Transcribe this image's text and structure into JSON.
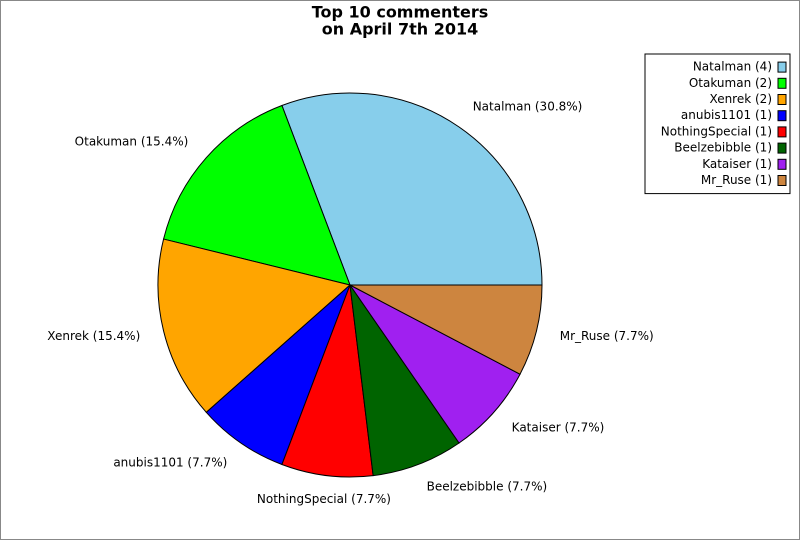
{
  "chart_data": {
    "type": "pie",
    "title": [
      "Top 10 commenters",
      "on April 7th 2014"
    ],
    "categories": [
      "Natalman",
      "Otakuman",
      "Xenrek",
      "anubis1101",
      "NothingSpecial",
      "Beelzebibble",
      "Kataiser",
      "Mr_Ruse"
    ],
    "values": [
      4,
      2,
      2,
      1,
      1,
      1,
      1,
      1
    ],
    "slice_labels": [
      "Natalman (30.8%)",
      "Otakuman (15.4%)",
      "Xenrek (15.4%)",
      "anubis1101 (7.7%)",
      "NothingSpecial (7.7%)",
      "Beelzebibble (7.7%)",
      "Kataiser (7.7%)",
      "Mr_Ruse (7.7%)"
    ],
    "legend_labels": [
      "Natalman (4)",
      "Otakuman (2)",
      "Xenrek (2)",
      "anubis1101 (1)",
      "NothingSpecial (1)",
      "Beelzebibble (1)",
      "Kataiser (1)",
      "Mr_Ruse (1)"
    ],
    "colors": [
      "#87ceeb",
      "#00ff00",
      "#ffa500",
      "#0000ff",
      "#ff0000",
      "#006400",
      "#a020f0",
      "#cd853f"
    ],
    "legend": "upper right"
  }
}
